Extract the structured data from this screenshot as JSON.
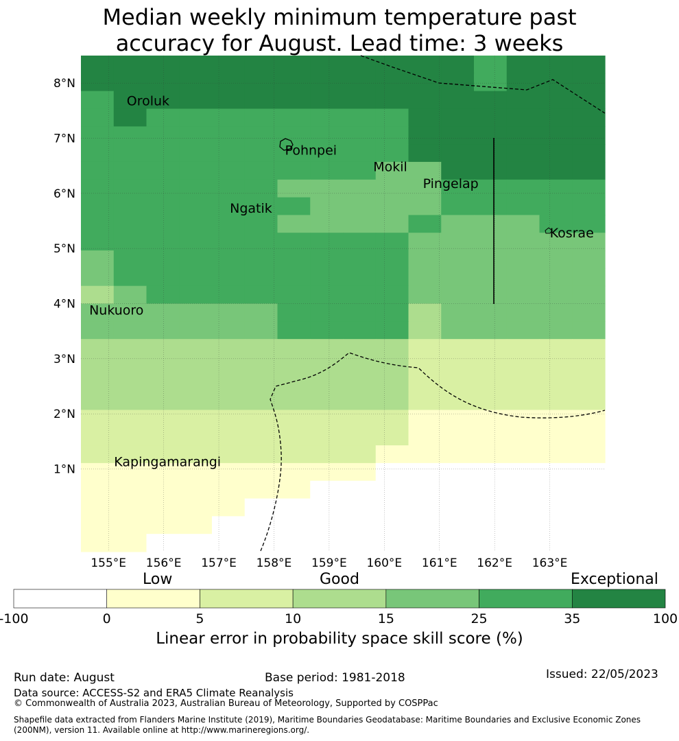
{
  "title_line1": "Median weekly minimum temperature past",
  "title_line2": "accuracy for August. Lead time: 3 weeks",
  "map": {
    "lon_range": [
      154.5,
      164.0
    ],
    "lat_range": [
      -0.5,
      8.5
    ],
    "x_ticks": [
      "155°E",
      "156°E",
      "157°E",
      "158°E",
      "159°E",
      "160°E",
      "161°E",
      "162°E",
      "163°E"
    ],
    "y_ticks": [
      "1°N",
      "2°N",
      "3°N",
      "4°N",
      "5°N",
      "6°N",
      "7°N",
      "8°N"
    ],
    "places": [
      {
        "name": "Oroluk",
        "lon": 155.33,
        "lat": 7.6
      },
      {
        "name": "Pohnpei",
        "lon": 158.2,
        "lat": 6.7
      },
      {
        "name": "Mokil",
        "lon": 159.8,
        "lat": 6.4
      },
      {
        "name": "Pingelap",
        "lon": 160.7,
        "lat": 6.1
      },
      {
        "name": "Ngatik",
        "lon": 157.2,
        "lat": 5.65
      },
      {
        "name": "Kosrae",
        "lon": 163.0,
        "lat": 5.2
      },
      {
        "name": "Nukuoro",
        "lon": 154.65,
        "lat": 3.8
      },
      {
        "name": "Kapingamarangi",
        "lon": 155.1,
        "lat": 1.05
      }
    ]
  },
  "colorbar": {
    "ticks": [
      "-100",
      "0",
      "5",
      "10",
      "15",
      "25",
      "35",
      "100"
    ],
    "colors": [
      "#ffffff",
      "#ffffcc",
      "#d9f0a3",
      "#addd8e",
      "#78c679",
      "#41ab5d",
      "#238443"
    ],
    "category_low": "Low",
    "category_good": "Good",
    "category_exceptional": "Exceptional",
    "label": "Linear error in probability space skill score (%)"
  },
  "grid_rows": [
    "6666666666665666",
    "6666666666665666",
    "5666666666666666",
    "5655555555666666",
    "5555555555666666",
    "5555555555666666",
    "5555555554466666",
    "5555554444455555",
    "5555555444455555",
    "5555554444544455",
    "5555555555444444",
    "4555555555444444",
    "4555555555444444",
    "3455555555444444",
    "4444445555344444",
    "4444445555344444",
    "3333333333222222",
    "3333333333222222",
    "3333333333222222",
    "3333333333222222",
    "2222222222111111",
    "2222222222111111",
    "2222222221111111",
    "1111111110000000",
    "1111111000000000",
    "1111100000000000",
    "1111000000000000",
    "1100000000000000"
  ],
  "footer": {
    "run_date": "Run date: August",
    "base_period": "Base period: 1981-2018",
    "issued": "Issued: 22/05/2023",
    "data_source": "Data source: ACCESS-S2 and ERA5 Climate Reanalysis",
    "copyright": "© Commonwealth of Australia 2023, Australian Bureau of Meteorology, Supported by COSPPac",
    "shapefile": "Shapefile data extracted from Flanders Marine Institute (2019), Maritime Boundaries Geodatabase: Maritime Boundaries and Exclusive Economic Zones (200NM), version 11. Available online at http://www.marineregions.org/."
  }
}
